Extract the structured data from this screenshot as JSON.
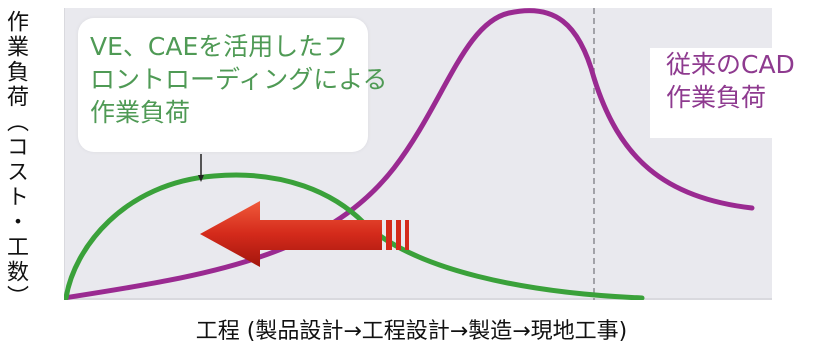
{
  "y_axis_label": "作業負荷（コスト・工数）",
  "x_axis_label": "工程 (製品設計→工程設計→製造→現地工事)",
  "green_callout_lines": [
    "VE、CAEを活用したフ",
    "ロントローディングによる",
    "作業負荷"
  ],
  "purple_callout_lines": [
    "従来のCAD",
    "作業負荷"
  ],
  "colors": {
    "frontloading_curve": "#3aa13a",
    "conventional_curve": "#9a2a91",
    "arrow": "#d42a1b",
    "plot_background": "#e9e9ee",
    "green_text": "#4f9a55",
    "purple_text": "#8e3a8f"
  }
}
